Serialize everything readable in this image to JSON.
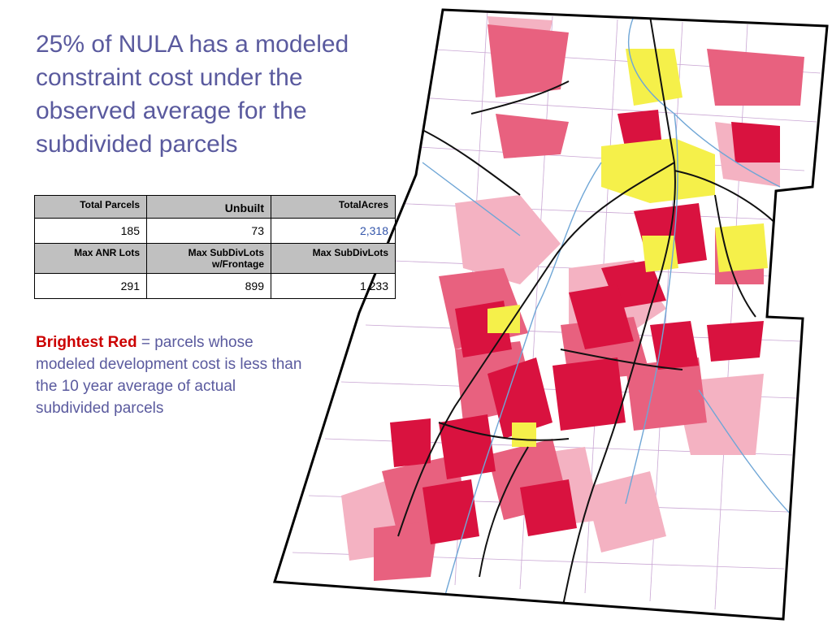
{
  "slide": {
    "title": "25% of NULA has a modeled constraint cost under the observed average for the subdivided parcels",
    "note_highlight": "Brightest Red",
    "note_text": " = parcels whose modeled development cost is less than the 10 year average of actual subdivided parcels"
  },
  "table": {
    "header1": [
      "Total Parcels",
      "Unbuilt",
      "TotalAcres"
    ],
    "values1": [
      "185",
      "73",
      "2,318"
    ],
    "header2": [
      "Max ANR Lots",
      "Max SubDivLots w/Frontage",
      "Max SubDivLots"
    ],
    "values2": [
      "291",
      "899",
      "1,233"
    ]
  },
  "map": {
    "colors": {
      "brightest_red": "#d9123f",
      "medium_pink": "#e8617f",
      "light_pink": "#f4b2c2",
      "developed_yellow": "#f5f04a",
      "roads": "#111111",
      "streams": "#6fa6d6",
      "parcel_lines": "#c9a6d3",
      "boundary": "#000000"
    }
  }
}
